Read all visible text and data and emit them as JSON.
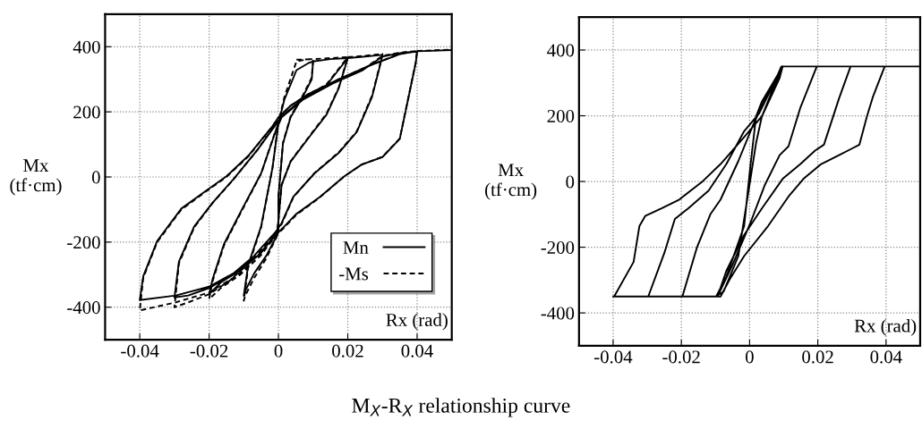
{
  "chart_data": [
    {
      "type": "line",
      "annotations": [
        "M$_{X}$-R$_{X}$ relationship curve"
      ],
      "xlabel": "Rx (rad)",
      "ylabel": "Mx\n(tf·cm)",
      "xlim": [
        -0.05,
        0.05
      ],
      "ylim": [
        -500,
        500
      ],
      "xticks": [
        -0.04,
        -0.02,
        0,
        0.02,
        0.04
      ],
      "yticks": [
        -400,
        -200,
        0,
        200,
        400
      ],
      "grid": true,
      "legend": "bottom right",
      "marker": "none",
      "series": [
        {
          "name": "Mn",
          "color": "#000000",
          "line_style": "solid",
          "x": [
            0.0087,
            0.01,
            0.0096,
            0.007,
            0.0035,
            0.0013,
            0,
            0,
            -0.0035,
            -0.007,
            -0.0096,
            -0.01,
            -0.0087,
            -0.005,
            -0.0017,
            0,
            0.0017,
            0.0052,
            0.0087,
            0.01,
            0.015,
            0.02,
            0.0174,
            0.0139,
            0.0087,
            0.0035,
            0.0009,
            0,
            -0.0004,
            -0.005,
            -0.011,
            -0.0165,
            -0.02,
            -0.019,
            -0.0157,
            -0.0104,
            -0.005,
            -0.0009,
            0.0009,
            0.007,
            0.0139,
            0.02,
            0.025,
            0.03,
            0.0296,
            0.027,
            0.0226,
            0.0174,
            0.0104,
            0.0043,
            0.0009,
            -0.0009,
            -0.007,
            -0.014,
            -0.02,
            -0.026,
            -0.03,
            -0.0287,
            -0.0243,
            -0.019,
            -0.013,
            -0.006,
            -0.0017,
            0.0009,
            0.007,
            0.0157,
            0.0243,
            0.03,
            0.035,
            0.04,
            0.0396,
            0.035,
            0.03,
            0.024,
            0.019,
            0.012,
            0.005,
            0.0017,
            0,
            -0.006,
            -0.013,
            -0.02,
            -0.0296,
            -0.04,
            -0.039,
            -0.035,
            -0.028,
            -0.021,
            -0.015,
            -0.0087,
            -0.0017,
            0,
            0.0035,
            0.0087,
            0.0174,
            0.026,
            0.035,
            0.04,
            0.05
          ],
          "values": [
            350,
            355,
            300,
            246,
            183,
            102,
            -61,
            -170,
            -242,
            -296,
            -350,
            -365,
            -269,
            -152,
            29,
            165,
            237,
            328,
            350,
            355,
            362,
            365,
            273,
            192,
            120,
            47,
            -25,
            -133,
            -170,
            -233,
            -287,
            -323,
            -360,
            -314,
            -206,
            -97,
            11,
            138,
            183,
            237,
            282,
            365,
            370,
            375,
            355,
            246,
            138,
            74,
            11,
            -61,
            -142,
            -170,
            -242,
            -305,
            -341,
            -364,
            -370,
            -260,
            -152,
            -79,
            -7,
            84,
            147,
            183,
            237,
            287,
            328,
            370,
            380,
            385,
            350,
            117,
            61,
            38,
            2,
            -61,
            -115,
            -152,
            -170,
            -242,
            -296,
            -337,
            -364,
            -378,
            -305,
            -197,
            -97,
            -43,
            2,
            65,
            156,
            183,
            219,
            255,
            300,
            341,
            377,
            386,
            390
          ]
        },
        {
          "name": "-Ms",
          "color": "#000000",
          "line_style": "dashed",
          "x": [
            0.0052,
            0.01,
            0.0096,
            0.007,
            0.0035,
            0.0013,
            0,
            0,
            -0.0035,
            -0.007,
            -0.0096,
            -0.01,
            -0.0087,
            -0.005,
            -0.0017,
            0,
            0.0017,
            0.0052,
            0.0087,
            0.01,
            0.015,
            0.02,
            0.0174,
            0.0139,
            0.0087,
            0.0035,
            0.0009,
            0,
            -0.0004,
            -0.005,
            -0.011,
            -0.0165,
            -0.02,
            -0.019,
            -0.0157,
            -0.0104,
            -0.005,
            -0.0009,
            0.0009,
            0.007,
            0.0139,
            0.02,
            0.025,
            0.03,
            0.0296,
            0.027,
            0.0226,
            0.0174,
            0.0104,
            0.0043,
            0.0009,
            -0.0009,
            -0.007,
            -0.014,
            -0.02,
            -0.026,
            -0.03,
            -0.0287,
            -0.0243,
            -0.019,
            -0.013,
            -0.006,
            -0.0017,
            0.0009,
            0.007,
            0.0157,
            0.0243,
            0.03,
            0.035,
            0.04,
            0.0396,
            0.035,
            0.03,
            0.024,
            0.019,
            0.012,
            0.005,
            0.0017,
            0,
            -0.006,
            -0.013,
            -0.02,
            -0.0296,
            -0.038,
            -0.04,
            -0.039,
            -0.035,
            -0.028,
            -0.021,
            -0.015,
            -0.0087,
            -0.0017,
            0,
            0.0035,
            0.0087,
            0.0174,
            0.026,
            0.035,
            0.04,
            0.05
          ],
          "values": [
            360,
            362,
            305,
            250,
            186,
            105,
            -61,
            -172,
            -250,
            -310,
            -365,
            -380,
            -275,
            -155,
            29,
            168,
            245,
            355,
            362,
            362,
            365,
            368,
            275,
            195,
            122,
            48,
            -25,
            -135,
            -172,
            -240,
            -300,
            -340,
            -375,
            -320,
            -210,
            -100,
            10,
            140,
            186,
            240,
            285,
            368,
            372,
            378,
            358,
            250,
            140,
            76,
            12,
            -62,
            -145,
            -172,
            -250,
            -318,
            -360,
            -385,
            -400,
            -265,
            -155,
            -80,
            -8,
            84,
            150,
            186,
            240,
            290,
            330,
            372,
            382,
            387,
            352,
            118,
            62,
            38,
            2,
            -62,
            -118,
            -155,
            -172,
            -250,
            -310,
            -355,
            -385,
            -405,
            -410,
            -310,
            -200,
            -100,
            -45,
            0,
            63,
            156,
            183,
            219,
            255,
            300,
            341,
            378,
            387,
            391
          ]
        }
      ]
    },
    {
      "type": "line",
      "xlabel": "Rx (rad)",
      "ylabel": "Mx\n(tf·cm)",
      "xlim": [
        -0.05,
        0.05
      ],
      "ylim": [
        -500,
        500
      ],
      "xticks": [
        -0.04,
        -0.02,
        0,
        0.02,
        0.04
      ],
      "yticks": [
        -400,
        -200,
        0,
        200,
        400
      ],
      "grid": true,
      "marker": "none",
      "series": [
        {
          "color": "#000000",
          "line_style": "solid",
          "x": [
            0.0097,
            0.0036,
            0.0019,
            0.0002,
            -0.0016,
            -0.0068,
            -0.0098,
            -0.01,
            -0.0076,
            -0.0033,
            0.0019,
            0.0036,
            0.0088,
            0.0097,
            0.02,
            0.0197,
            0.0149,
            0.0114,
            0.0088,
            0.0045,
            0.0002,
            -0.005,
            -0.0094,
            -0.02,
            -0.0197,
            -0.0154,
            -0.0115,
            -0.0085,
            -0.0033,
            0.001,
            0.0054,
            0.0097,
            0.03,
            0.0296,
            0.0262,
            0.0218,
            0.0192,
            0.0149,
            0.0097,
            0.0036,
            -0.0016,
            -0.0068,
            -0.0094,
            -0.03,
            -0.0297,
            -0.025,
            -0.0219,
            -0.018,
            -0.012,
            -0.0068,
            -0.0016,
            0.0028,
            0.0071,
            0.0093,
            0.04,
            0.0396,
            0.0361,
            0.0344,
            0.0322,
            0.0296,
            0.0262,
            0.021,
            0.0158,
            0.0114,
            0.0054,
            -0.0016,
            -0.0059,
            -0.0085,
            -0.04,
            -0.0397,
            -0.034,
            -0.0323,
            -0.0306,
            -0.0258,
            -0.0206,
            -0.0137,
            -0.0085,
            -0.0016,
            0.0036,
            0.0071,
            0.0097,
            0.05
          ],
          "values": [
            350,
            243,
            198,
            44,
            -136,
            -290,
            -350,
            -350,
            -335,
            -227,
            117,
            198,
            315,
            350,
            350,
            350,
            225,
            107,
            80,
            -10,
            -127,
            -254,
            -350,
            -350,
            -350,
            -200,
            -100,
            -55,
            62,
            171,
            270,
            350,
            350,
            350,
            252,
            112,
            94,
            53,
            8,
            -82,
            -163,
            -272,
            -350,
            -350,
            -350,
            -218,
            -114,
            -82,
            -28,
            53,
            153,
            207,
            297,
            350,
            350,
            350,
            256,
            198,
            112,
            98,
            80,
            53,
            8,
            -46,
            -136,
            -227,
            -299,
            -350,
            -350,
            -350,
            -245,
            -136,
            -105,
            -82,
            -55,
            1,
            53,
            135,
            198,
            288,
            350,
            350
          ]
        }
      ]
    }
  ]
}
